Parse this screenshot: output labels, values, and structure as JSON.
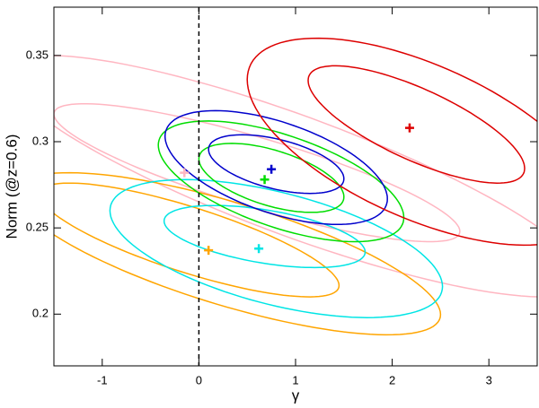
{
  "chart_data": {
    "type": "contour",
    "x_label": "γ",
    "y_label": "Norm (@z=0.6)",
    "xlim": [
      -1.5,
      3.5
    ],
    "ylim": [
      0.17,
      0.378
    ],
    "xticks": [
      -1,
      0,
      1,
      2,
      3
    ],
    "yticks": [
      0.2,
      0.25,
      0.3,
      0.35
    ],
    "vline": 0,
    "series": [
      {
        "color": "#ffb6c1",
        "best_fit": [
          -0.15,
          0.282
        ],
        "contours": [
          {
            "cx": 0.6,
            "cy": 0.282,
            "sx": 2.1,
            "sy": 0.04,
            "rho": -0.85
          },
          {
            "cx": 1.0,
            "cy": 0.28,
            "sx": 3.0,
            "sy": 0.07,
            "rho": -0.85
          }
        ]
      },
      {
        "color": "#ffa500",
        "best_fit": [
          0.1,
          0.237
        ],
        "contours": [
          {
            "cx": -0.1,
            "cy": 0.243,
            "sx": 1.55,
            "sy": 0.033,
            "rho": -0.8
          },
          {
            "cx": 0.3,
            "cy": 0.235,
            "sx": 2.2,
            "sy": 0.047,
            "rho": -0.75
          }
        ]
      },
      {
        "color": "#00e5e5",
        "best_fit": [
          0.62,
          0.238
        ],
        "contours": [
          {
            "cx": 0.68,
            "cy": 0.245,
            "sx": 1.04,
            "sy": 0.018,
            "rho": -0.5
          },
          {
            "cx": 0.8,
            "cy": 0.238,
            "sx": 1.72,
            "sy": 0.04,
            "rho": -0.55
          }
        ]
      },
      {
        "color": "#00dd00",
        "best_fit": [
          0.68,
          0.278
        ],
        "contours": [
          {
            "cx": 0.75,
            "cy": 0.279,
            "sx": 0.75,
            "sy": 0.02,
            "rho": -0.55
          },
          {
            "cx": 0.85,
            "cy": 0.277,
            "sx": 1.27,
            "sy": 0.035,
            "rho": -0.6
          }
        ]
      },
      {
        "color": "#0000cc",
        "best_fit": [
          0.75,
          0.284
        ],
        "contours": [
          {
            "cx": 0.8,
            "cy": 0.287,
            "sx": 0.7,
            "sy": 0.017,
            "rho": -0.5
          },
          {
            "cx": 0.8,
            "cy": 0.285,
            "sx": 1.15,
            "sy": 0.033,
            "rho": -0.55
          }
        ]
      },
      {
        "color": "#dd0000",
        "best_fit": [
          2.18,
          0.308
        ],
        "contours": [
          {
            "cx": 2.25,
            "cy": 0.31,
            "sx": 1.12,
            "sy": 0.034,
            "rho": -0.75
          },
          {
            "cx": 2.3,
            "cy": 0.3,
            "sx": 1.8,
            "sy": 0.06,
            "rho": -0.6
          }
        ]
      }
    ]
  }
}
